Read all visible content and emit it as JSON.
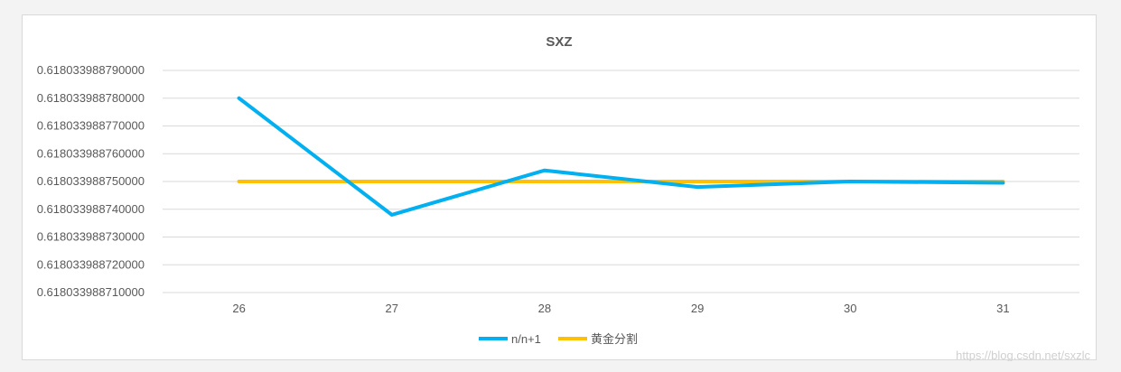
{
  "chart_data": {
    "type": "line",
    "title": "SXZ",
    "categories": [
      "26",
      "27",
      "28",
      "29",
      "30",
      "31"
    ],
    "series": [
      {
        "name": "n/n+1",
        "color": "#00b0f0",
        "values": [
          0.61803398878,
          0.618033988738,
          0.618033988754,
          0.618033988748,
          0.61803398875,
          0.6180339887495
        ]
      },
      {
        "name": "黄金分割",
        "color": "#ffc000",
        "values": [
          0.61803398875,
          0.61803398875,
          0.61803398875,
          0.61803398875,
          0.61803398875,
          0.61803398875
        ]
      }
    ],
    "ylim": [
      0.61803398871,
      0.61803398879
    ],
    "yticks": [
      "0.618033988790000",
      "0.618033988780000",
      "0.618033988770000",
      "0.618033988760000",
      "0.618033988750000",
      "0.618033988740000",
      "0.618033988730000",
      "0.618033988720000",
      "0.618033988710000"
    ],
    "grid": true,
    "legend_position": "bottom"
  },
  "watermark": "https://blog.csdn.net/sxzlc"
}
